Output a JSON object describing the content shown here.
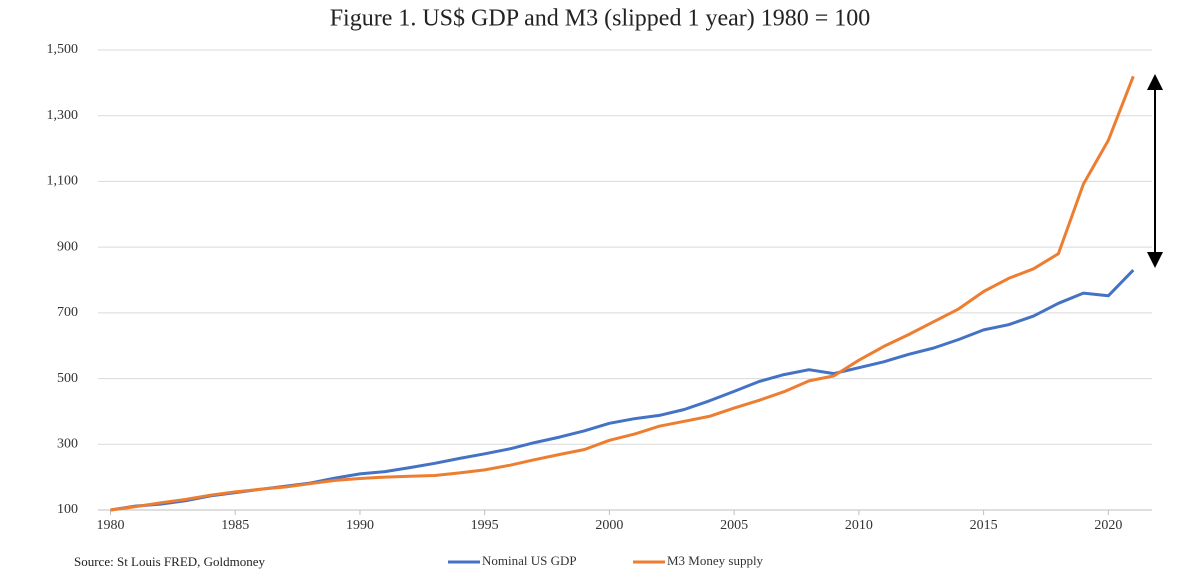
{
  "chart_data": {
    "type": "line",
    "title": "Figure 1. US$ GDP and M3 (slipped 1 year) 1980 = 100",
    "source": "Source: St Louis FRED, Goldmoney",
    "x": [
      1980,
      1981,
      1982,
      1983,
      1984,
      1985,
      1986,
      1987,
      1988,
      1989,
      1990,
      1991,
      1992,
      1993,
      1994,
      1995,
      1996,
      1997,
      1998,
      1999,
      2000,
      2001,
      2002,
      2003,
      2004,
      2005,
      2006,
      2007,
      2008,
      2009,
      2010,
      2011,
      2012,
      2013,
      2014,
      2015,
      2016,
      2017,
      2018,
      2019,
      2020,
      2021
    ],
    "series": [
      {
        "name": "Nominal US GDP",
        "color": "#4472c4",
        "values": [
          100,
          112,
          118,
          128,
          143,
          153,
          163,
          172,
          182,
          197,
          210,
          217,
          229,
          242,
          257,
          271,
          286,
          305,
          322,
          341,
          364,
          378,
          388,
          406,
          432,
          461,
          491,
          512,
          527,
          515,
          533,
          551,
          574,
          593,
          619,
          648,
          664,
          690,
          729,
          760,
          752,
          830
        ]
      },
      {
        "name": "M3 Money supply",
        "color": "#ed7d31",
        "values": [
          100,
          110,
          122,
          132,
          145,
          155,
          163,
          170,
          180,
          190,
          196,
          200,
          203,
          205,
          213,
          222,
          236,
          253,
          269,
          284,
          312,
          331,
          355,
          370,
          385,
          410,
          434,
          460,
          493,
          508,
          556,
          598,
          634,
          673,
          712,
          765,
          805,
          834,
          880,
          1092,
          1225,
          1420
        ]
      }
    ],
    "xlim": [
      1979.5,
      2021.75
    ],
    "xticks": [
      1980,
      1985,
      1990,
      1995,
      2000,
      2005,
      2010,
      2015,
      2020
    ],
    "ylim": [
      100,
      1500
    ],
    "yticks": [
      100,
      300,
      500,
      700,
      900,
      {
        "value": 1100,
        "label": "1,100"
      },
      {
        "value": 1300,
        "label": "1,300"
      },
      {
        "value": 1500,
        "label": "1,500"
      }
    ],
    "grid": true,
    "legend": "bottom"
  }
}
